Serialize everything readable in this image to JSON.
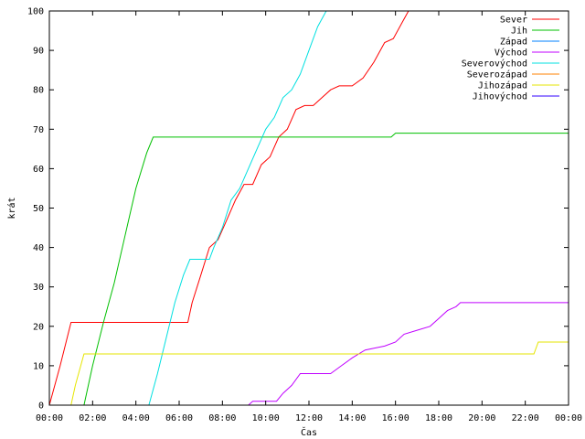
{
  "chart_data": {
    "type": "line",
    "title": "",
    "xlabel": "Čas",
    "ylabel": "krát",
    "xlim": [
      0,
      24
    ],
    "ylim": [
      0,
      100
    ],
    "x_ticks": [
      "00:00",
      "02:00",
      "04:00",
      "06:00",
      "08:00",
      "10:00",
      "12:00",
      "14:00",
      "16:00",
      "18:00",
      "20:00",
      "22:00",
      "00:00"
    ],
    "y_ticks": [
      0,
      10,
      20,
      30,
      40,
      50,
      60,
      70,
      80,
      90,
      100
    ],
    "grid": false,
    "legend_position": "top-right",
    "series": [
      {
        "name": "Sever",
        "color": "#ff0000",
        "points": [
          [
            0,
            0
          ],
          [
            0.5,
            10
          ],
          [
            1.0,
            21
          ],
          [
            6.4,
            21
          ],
          [
            6.6,
            26
          ],
          [
            7.0,
            33
          ],
          [
            7.4,
            40
          ],
          [
            7.8,
            42
          ],
          [
            8.2,
            47
          ],
          [
            8.6,
            52
          ],
          [
            9.0,
            56
          ],
          [
            9.4,
            56
          ],
          [
            9.8,
            61
          ],
          [
            10.2,
            63
          ],
          [
            10.6,
            68
          ],
          [
            11.0,
            70
          ],
          [
            11.4,
            75
          ],
          [
            11.8,
            76
          ],
          [
            12.2,
            76
          ],
          [
            12.6,
            78
          ],
          [
            13.0,
            80
          ],
          [
            13.4,
            81
          ],
          [
            14.0,
            81
          ],
          [
            14.5,
            83
          ],
          [
            15.0,
            87
          ],
          [
            15.5,
            92
          ],
          [
            15.9,
            93
          ],
          [
            16.3,
            97
          ],
          [
            16.6,
            100
          ]
        ]
      },
      {
        "name": "Jih",
        "color": "#00c000",
        "points": [
          [
            1.6,
            0
          ],
          [
            2.0,
            10
          ],
          [
            2.5,
            21
          ],
          [
            3.0,
            31
          ],
          [
            3.5,
            43
          ],
          [
            4.0,
            55
          ],
          [
            4.5,
            64
          ],
          [
            4.8,
            68
          ],
          [
            15.8,
            68
          ],
          [
            16.0,
            69
          ],
          [
            24,
            69
          ]
        ]
      },
      {
        "name": "Západ",
        "color": "#0080ff",
        "points": []
      },
      {
        "name": "Východ",
        "color": "#c000ff",
        "points": [
          [
            9.2,
            0
          ],
          [
            9.4,
            1
          ],
          [
            10.5,
            1
          ],
          [
            10.8,
            3
          ],
          [
            11.2,
            5
          ],
          [
            11.6,
            8
          ],
          [
            12.0,
            8
          ],
          [
            13.0,
            8
          ],
          [
            13.5,
            10
          ],
          [
            14.0,
            12
          ],
          [
            14.6,
            14
          ],
          [
            15.5,
            15
          ],
          [
            16.0,
            16
          ],
          [
            16.4,
            18
          ],
          [
            17.0,
            19
          ],
          [
            17.6,
            20
          ],
          [
            18.0,
            22
          ],
          [
            18.4,
            24
          ],
          [
            18.8,
            25
          ],
          [
            19.0,
            26
          ],
          [
            24,
            26
          ]
        ]
      },
      {
        "name": "Severovýchod",
        "color": "#00e0e0",
        "points": [
          [
            4.6,
            0
          ],
          [
            5.0,
            8
          ],
          [
            5.4,
            17
          ],
          [
            5.8,
            26
          ],
          [
            6.2,
            33
          ],
          [
            6.5,
            37
          ],
          [
            7.4,
            37
          ],
          [
            7.6,
            40
          ],
          [
            8.0,
            45
          ],
          [
            8.4,
            52
          ],
          [
            8.8,
            55
          ],
          [
            9.2,
            60
          ],
          [
            9.6,
            65
          ],
          [
            10.0,
            70
          ],
          [
            10.4,
            73
          ],
          [
            10.8,
            78
          ],
          [
            11.2,
            80
          ],
          [
            11.6,
            84
          ],
          [
            12.0,
            90
          ],
          [
            12.4,
            96
          ],
          [
            12.8,
            100
          ]
        ]
      },
      {
        "name": "Severozápad",
        "color": "#ff8000",
        "points": []
      },
      {
        "name": "Jihozápad",
        "color": "#e6e600",
        "points": [
          [
            1.0,
            0
          ],
          [
            1.2,
            5
          ],
          [
            1.6,
            13
          ],
          [
            22.4,
            13
          ],
          [
            22.6,
            16
          ],
          [
            24,
            16
          ]
        ]
      },
      {
        "name": "Jihovýchod",
        "color": "#3000ff",
        "points": []
      }
    ]
  }
}
